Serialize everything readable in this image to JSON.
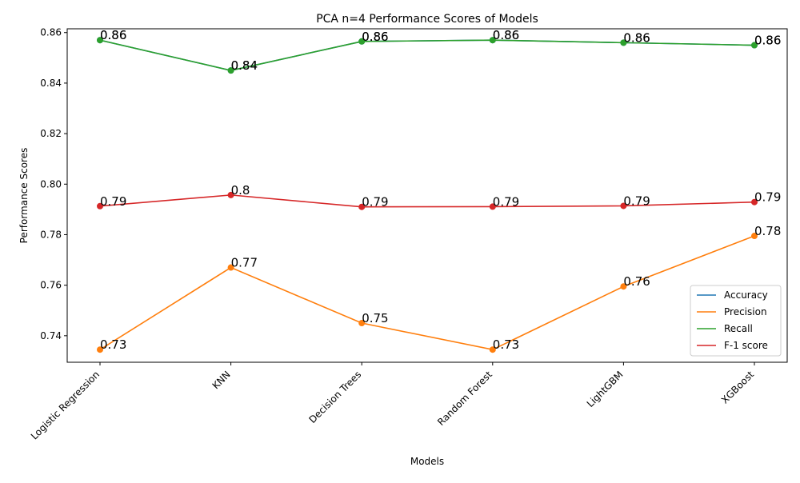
{
  "chart_data": {
    "type": "line",
    "title": "PCA n=4  Performance Scores of Models",
    "xlabel": "Models",
    "ylabel": "Performance Scores",
    "categories": [
      "Logistic Regression",
      "KNN",
      "Decision Trees",
      "Random Forest",
      "LightGBM",
      "XGBoost"
    ],
    "ylim": [
      0.7295,
      0.8615
    ],
    "yticks": [
      "0.74",
      "0.76",
      "0.78",
      "0.80",
      "0.82",
      "0.84",
      "0.86"
    ],
    "ytick_values": [
      0.74,
      0.76,
      0.78,
      0.8,
      0.82,
      0.84,
      0.86
    ],
    "grid": false,
    "legend_position": "bottom-right",
    "series": [
      {
        "name": "Accuracy",
        "color": "#1f77b4",
        "values": [
          0.857,
          0.845,
          0.8565,
          0.857,
          0.856,
          0.855
        ],
        "labels": [
          "0.86",
          "0.84",
          "0.86",
          "0.86",
          "0.86",
          "0.86"
        ]
      },
      {
        "name": "Precision",
        "color": "#ff7f0e",
        "values": [
          0.7345,
          0.767,
          0.745,
          0.7345,
          0.7595,
          0.7795
        ],
        "labels": [
          "0.73",
          "0.77",
          "0.75",
          "0.73",
          "0.76",
          "0.78"
        ]
      },
      {
        "name": "Recall",
        "color": "#2ca02c",
        "values": [
          0.857,
          0.845,
          0.8565,
          0.857,
          0.856,
          0.855
        ],
        "labels": [
          "0.86",
          "0.84",
          "0.86",
          "0.86",
          "0.86",
          "0.86"
        ]
      },
      {
        "name": "F-1 score",
        "color": "#d62728",
        "values": [
          0.7913,
          0.7957,
          0.791,
          0.7911,
          0.7914,
          0.7929
        ],
        "labels": [
          "0.79",
          "0.8",
          "0.79",
          "0.79",
          "0.79",
          "0.79"
        ]
      }
    ]
  }
}
